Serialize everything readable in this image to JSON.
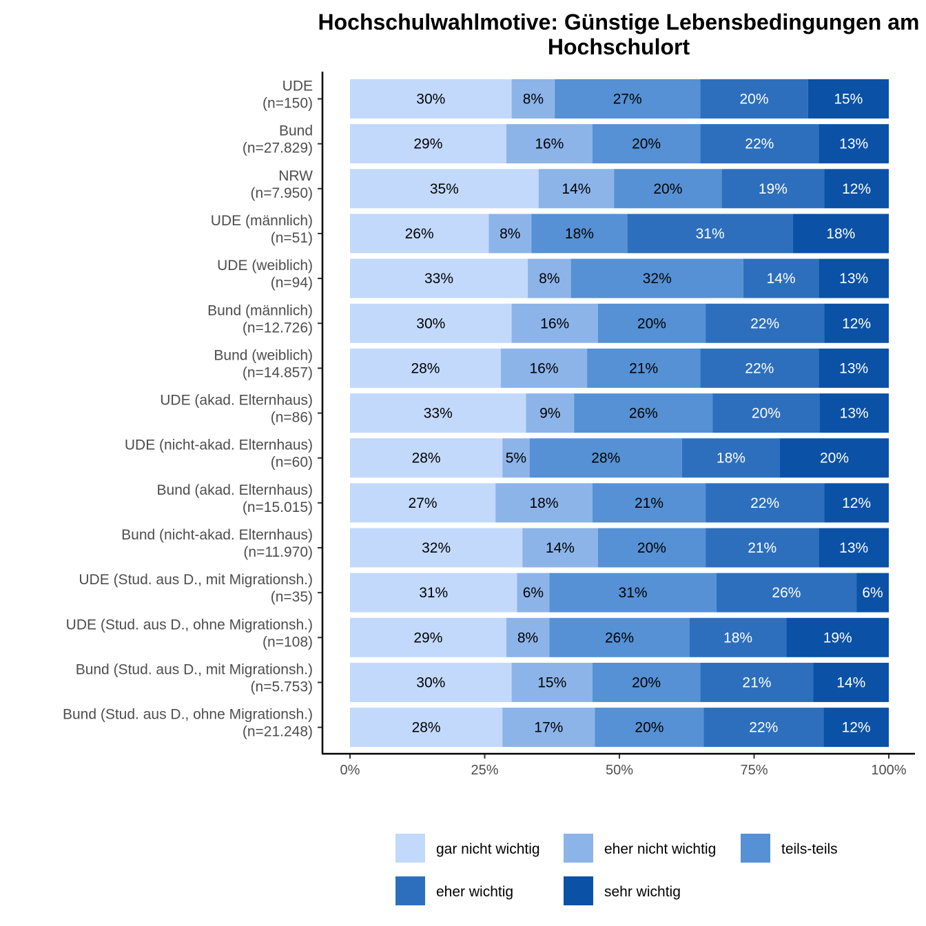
{
  "chart_data": {
    "type": "bar",
    "orientation": "horizontal",
    "stacked": true,
    "title_lines": [
      "Hochschulwahlmotive: Günstige Lebensbedingungen am",
      "Hochschulort"
    ],
    "categories": [
      [
        "UDE",
        "(n=150)"
      ],
      [
        "Bund",
        "(n=27.829)"
      ],
      [
        "NRW",
        "(n=7.950)"
      ],
      [
        "UDE (männlich)",
        "(n=51)"
      ],
      [
        "UDE (weiblich)",
        "(n=94)"
      ],
      [
        "Bund (männlich)",
        "(n=12.726)"
      ],
      [
        "Bund (weiblich)",
        "(n=14.857)"
      ],
      [
        "UDE (akad. Elternhaus)",
        "(n=86)"
      ],
      [
        "UDE (nicht-akad. Elternhaus)",
        "(n=60)"
      ],
      [
        "Bund (akad. Elternhaus)",
        "(n=15.015)"
      ],
      [
        "Bund (nicht-akad. Elternhaus)",
        "(n=11.970)"
      ],
      [
        "UDE (Stud. aus D., mit Migrationsh.)",
        "(n=35)"
      ],
      [
        "UDE (Stud. aus D., ohne Migrationsh.)",
        "(n=108)"
      ],
      [
        "Bund (Stud. aus D., mit Migrationsh.)",
        "(n=5.753)"
      ],
      [
        "Bund (Stud. aus D., ohne Migrationsh.)",
        "(n=21.248)"
      ]
    ],
    "series": [
      {
        "name": "gar nicht wichtig",
        "color": "#c2d9fc",
        "label_color": "#000000",
        "values": [
          30,
          29,
          35,
          26,
          33,
          30,
          28,
          33,
          28,
          27,
          32,
          31,
          29,
          30,
          28
        ]
      },
      {
        "name": "eher nicht wichtig",
        "color": "#8cb4e9",
        "label_color": "#000000",
        "values": [
          8,
          16,
          14,
          8,
          8,
          16,
          16,
          9,
          5,
          18,
          14,
          6,
          8,
          15,
          17
        ]
      },
      {
        "name": "teils-teils",
        "color": "#5591d4",
        "label_color": "#000000",
        "values": [
          27,
          20,
          20,
          18,
          32,
          20,
          21,
          26,
          28,
          21,
          20,
          31,
          26,
          20,
          20
        ]
      },
      {
        "name": "eher wichtig",
        "color": "#2d6fbd",
        "label_color": "#ffffff",
        "values": [
          20,
          22,
          19,
          31,
          14,
          22,
          22,
          20,
          18,
          22,
          21,
          26,
          18,
          21,
          22
        ]
      },
      {
        "name": "sehr wichtig",
        "color": "#0b51a6",
        "label_color": "#ffffff",
        "values": [
          15,
          13,
          12,
          18,
          13,
          12,
          13,
          13,
          20,
          12,
          13,
          6,
          19,
          14,
          12
        ]
      }
    ],
    "x_ticks": [
      "0%",
      "25%",
      "50%",
      "75%",
      "100%"
    ],
    "xlim": [
      0,
      100
    ],
    "value_suffix": "%",
    "legend_position": "bottom",
    "grid": false
  }
}
